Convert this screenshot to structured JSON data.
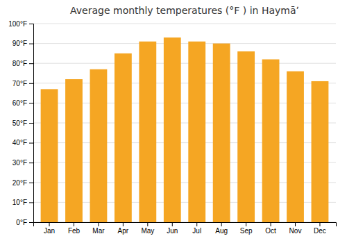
{
  "chart_data": {
    "type": "bar",
    "title": "Average monthly temperatures (°F ) in Haymāʼ",
    "categories": [
      "Jan",
      "Feb",
      "Mar",
      "Apr",
      "May",
      "Jun",
      "Jul",
      "Aug",
      "Sep",
      "Oct",
      "Nov",
      "Dec"
    ],
    "values": [
      67,
      72,
      77,
      85,
      91,
      93,
      91,
      90,
      86,
      82,
      76,
      71
    ],
    "color": "#F5A623",
    "ylim": [
      0,
      100
    ],
    "yticks": [
      {
        "value": 0,
        "label": "0°F"
      },
      {
        "value": 10,
        "label": "10°F"
      },
      {
        "value": 20,
        "label": "20°F"
      },
      {
        "value": 30,
        "label": "30°F"
      },
      {
        "value": 40,
        "label": "40°F"
      },
      {
        "value": 50,
        "label": "50°F"
      },
      {
        "value": 60,
        "label": "60°F"
      },
      {
        "value": 70,
        "label": "70°F"
      },
      {
        "value": 80,
        "label": "80°F"
      },
      {
        "value": 90,
        "label": "90°F"
      },
      {
        "value": 100,
        "label": "100°F"
      }
    ],
    "grid": true
  }
}
